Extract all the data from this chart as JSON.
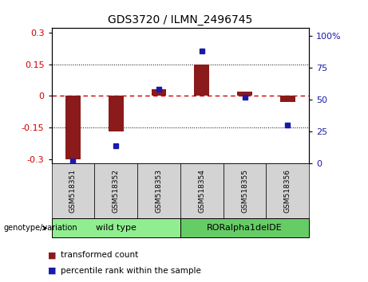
{
  "title": "GDS3720 / ILMN_2496745",
  "samples": [
    "GSM518351",
    "GSM518352",
    "GSM518353",
    "GSM518354",
    "GSM518355",
    "GSM518356"
  ],
  "red_values": [
    -0.3,
    -0.17,
    0.03,
    0.15,
    0.02,
    -0.03
  ],
  "blue_values": [
    2,
    14,
    58,
    88,
    52,
    30
  ],
  "left_ylim": [
    -0.32,
    0.32
  ],
  "right_ylim": [
    0,
    106
  ],
  "left_yticks": [
    -0.3,
    -0.15,
    0,
    0.15,
    0.3
  ],
  "left_yticklabels": [
    "-0.3",
    "-0.15",
    "0",
    "0.15",
    "0.3"
  ],
  "right_yticks": [
    0,
    25,
    50,
    75,
    100
  ],
  "right_yticklabels": [
    "0",
    "25",
    "50",
    "75",
    "100%"
  ],
  "wt_color": "#90ee90",
  "ror_color": "#66cc66",
  "sample_box_color": "#d3d3d3",
  "bar_color": "#8b1a1a",
  "dot_color": "#1a1aaa",
  "zero_line_color": "#cc0000",
  "grid_color": "#000000",
  "bg_color": "#ffffff"
}
